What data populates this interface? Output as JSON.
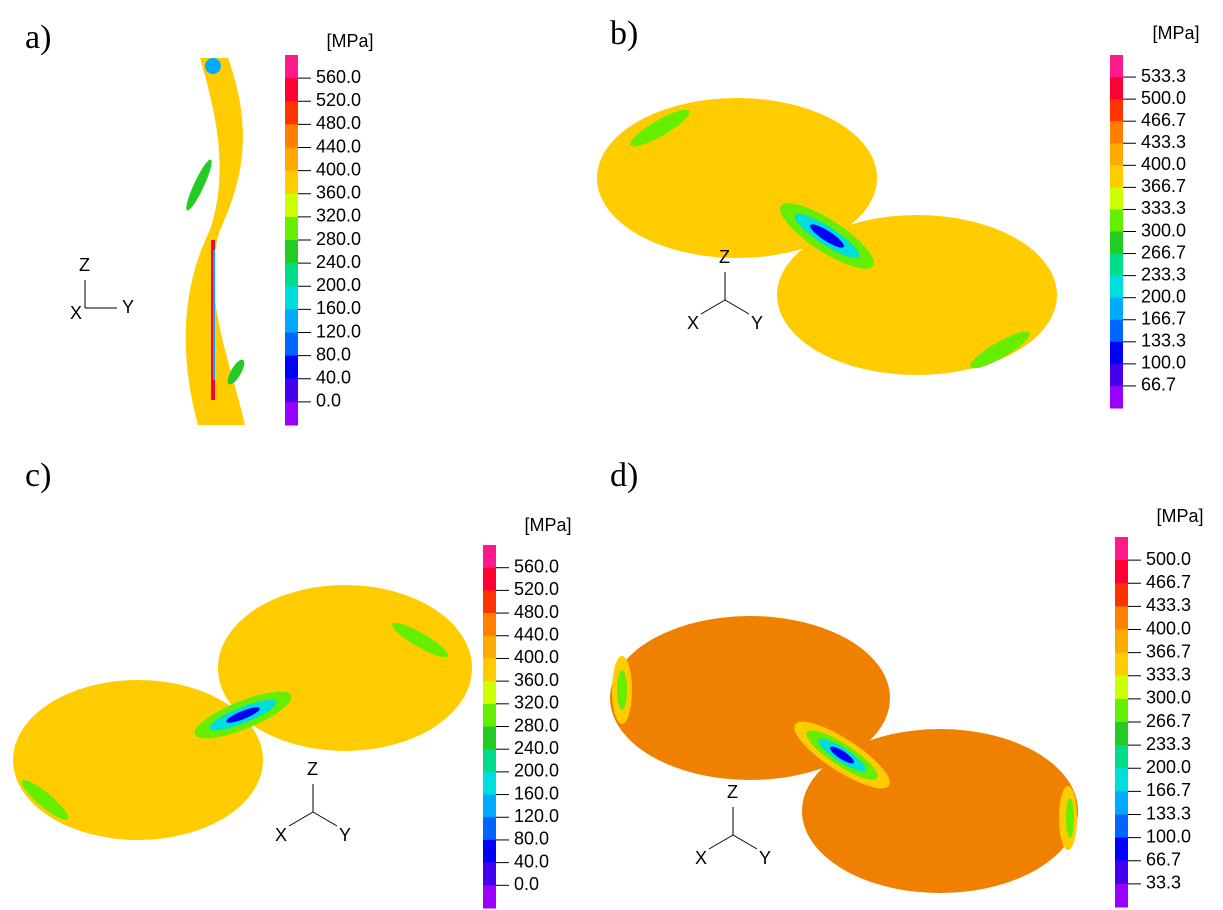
{
  "panels": [
    {
      "label": "a)",
      "unit": "[MPa]",
      "ticks": [
        "560.0",
        "520.0",
        "480.0",
        "440.0",
        "400.0",
        "360.0",
        "320.0",
        "280.0",
        "240.0",
        "200.0",
        "160.0",
        "120.0",
        "80.0",
        "40.0",
        "0.0"
      ],
      "axes": {
        "z": "Z",
        "x": "X",
        "y": "Y"
      }
    },
    {
      "label": "b)",
      "unit": "[MPa]",
      "ticks": [
        "533.3",
        "500.0",
        "466.7",
        "433.3",
        "400.0",
        "366.7",
        "333.3",
        "300.0",
        "266.7",
        "233.3",
        "200.0",
        "166.7",
        "133.3",
        "100.0",
        "66.7"
      ],
      "axes": {
        "z": "Z",
        "x": "X",
        "y": "Y"
      }
    },
    {
      "label": "c)",
      "unit": "[MPa]",
      "ticks": [
        "560.0",
        "520.0",
        "480.0",
        "440.0",
        "400.0",
        "360.0",
        "320.0",
        "280.0",
        "240.0",
        "200.0",
        "160.0",
        "120.0",
        "80.0",
        "40.0",
        "0.0"
      ],
      "axes": {
        "z": "Z",
        "x": "X",
        "y": "Y"
      }
    },
    {
      "label": "d)",
      "unit": "[MPa]",
      "ticks": [
        "500.0",
        "466.7",
        "433.3",
        "400.0",
        "366.7",
        "333.3",
        "300.0",
        "266.7",
        "233.3",
        "200.0",
        "166.7",
        "133.3",
        "100.0",
        "66.7",
        "33.3"
      ],
      "axes": {
        "z": "Z",
        "x": "X",
        "y": "Y"
      }
    }
  ]
}
